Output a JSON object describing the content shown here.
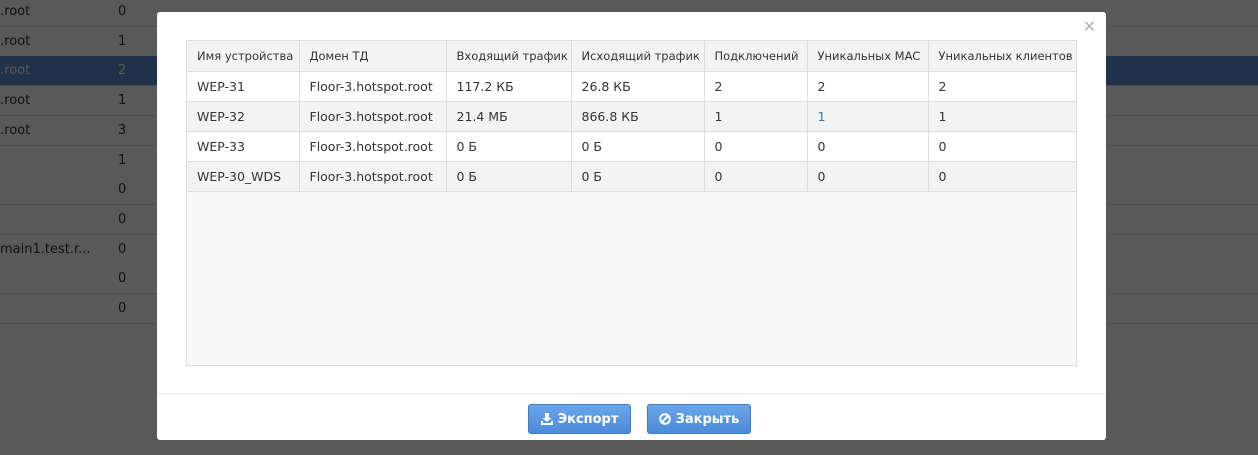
{
  "background_rows": [
    {
      "domain": ".root",
      "count": "0"
    },
    {
      "domain": ".root",
      "count": "1"
    },
    {
      "domain": ".root",
      "count": "2",
      "selected": true
    },
    {
      "domain": ".root",
      "count": "1"
    },
    {
      "domain": ".root",
      "count": "3"
    },
    {
      "domain": "",
      "count": "1"
    },
    {
      "domain": "",
      "count": "0"
    },
    {
      "domain": "",
      "count": "0"
    },
    {
      "domain": "main1.test.r...",
      "count": "0"
    },
    {
      "domain": "",
      "count": "0"
    },
    {
      "domain": "",
      "count": "0"
    }
  ],
  "modal": {
    "close_icon": "×",
    "columns": [
      "Имя устройства",
      "Домен ТД",
      "Входящий трафик",
      "Исходящий трафик",
      "Подключений",
      "Уникальных MAC",
      "Уникальных клиентов"
    ],
    "rows": [
      [
        "WEP-31",
        "Floor-3.hotspot.root",
        "117.2 КБ",
        "26.8 КБ",
        "2",
        "2",
        "2"
      ],
      [
        "WEP-32",
        "Floor-3.hotspot.root",
        "21.4 МБ",
        "866.8 КБ",
        "1",
        "1",
        "1"
      ],
      [
        "WEP-33",
        "Floor-3.hotspot.root",
        "0 Б",
        "0 Б",
        "0",
        "0",
        "0"
      ],
      [
        "WEP-30_WDS",
        "Floor-3.hotspot.root",
        "0 Б",
        "0 Б",
        "0",
        "0",
        "0"
      ]
    ],
    "export_label": "Экспорт",
    "close_label": "Закрыть"
  }
}
